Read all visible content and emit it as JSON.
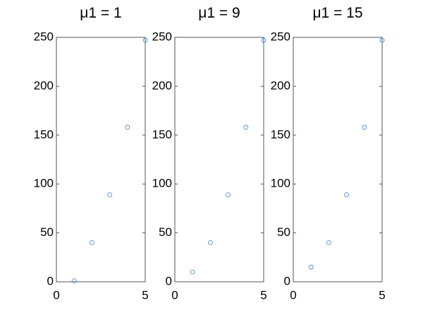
{
  "chart_data": [
    {
      "type": "scatter",
      "title": "μ1 = 1",
      "x": [
        1,
        2,
        3,
        4,
        5
      ],
      "values": [
        1,
        40,
        89,
        158,
        247
      ],
      "color": "#3d7fd6",
      "xlim": [
        0,
        5
      ],
      "xticks": [
        0,
        5
      ],
      "ylim": [
        0,
        250
      ],
      "yticks": [
        0,
        50,
        100,
        150,
        200,
        250
      ]
    },
    {
      "type": "scatter",
      "title": "μ1 = 9",
      "x": [
        1,
        2,
        3,
        4,
        5
      ],
      "values": [
        10,
        40,
        89,
        158,
        247
      ],
      "color": "#3d7fd6",
      "xlim": [
        0,
        5
      ],
      "xticks": [
        0,
        5
      ],
      "ylim": [
        0,
        250
      ],
      "yticks": [
        0,
        50,
        100,
        150,
        200,
        250
      ]
    },
    {
      "type": "scatter",
      "title": "μ1 = 15",
      "x": [
        1,
        2,
        3,
        4,
        5
      ],
      "values": [
        15,
        40,
        89,
        158,
        247
      ],
      "color": "#3d7fd6",
      "xlim": [
        0,
        5
      ],
      "xticks": [
        0,
        5
      ],
      "ylim": [
        0,
        250
      ],
      "yticks": [
        0,
        50,
        100,
        150,
        200,
        250
      ]
    }
  ]
}
